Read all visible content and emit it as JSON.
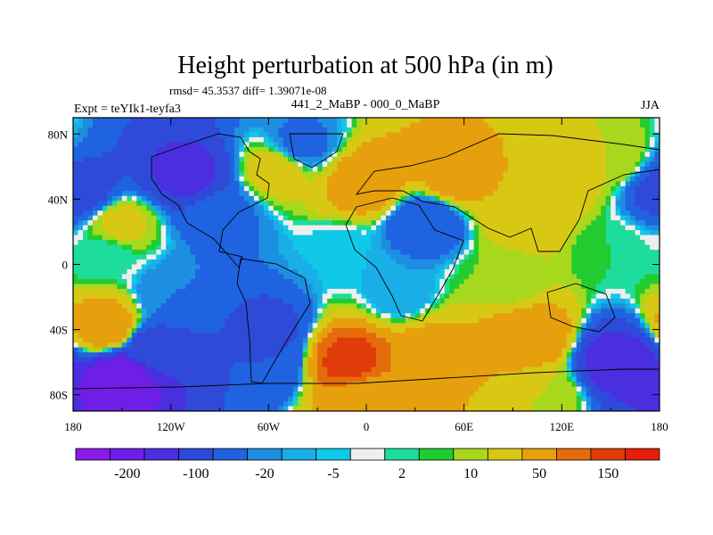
{
  "chart_data": {
    "type": "heatmap",
    "title": "Height perturbation at 500 hPa (in m)",
    "stats_text": "rmsd= 45.3537 diff= 1.39071e-08",
    "subtitle": "441_2_MaBP - 000_0_MaBP",
    "left_label": "Expt = teYIk1-teyfa3",
    "right_label": "JJA",
    "xlabel": "",
    "ylabel": "",
    "xlim": [
      -180,
      180
    ],
    "ylim": [
      -90,
      90
    ],
    "x_ticks": [
      {
        "value": -180,
        "label": "180"
      },
      {
        "value": -120,
        "label": "120W"
      },
      {
        "value": -60,
        "label": "60W"
      },
      {
        "value": 0,
        "label": "0"
      },
      {
        "value": 60,
        "label": "60E"
      },
      {
        "value": 120,
        "label": "120E"
      },
      {
        "value": 180,
        "label": "180"
      }
    ],
    "y_ticks": [
      {
        "value": 80,
        "label": "80N"
      },
      {
        "value": 40,
        "label": "40N"
      },
      {
        "value": 0,
        "label": "0"
      },
      {
        "value": -40,
        "label": "40S"
      },
      {
        "value": -80,
        "label": "80S"
      }
    ],
    "colorbar": {
      "levels": [
        -200,
        -150,
        -100,
        -50,
        -20,
        -10,
        -5,
        -2,
        2,
        5,
        10,
        20,
        50,
        100,
        150,
        200
      ],
      "shown_labels": [
        {
          "index": 1,
          "label": "-200"
        },
        {
          "index": 3,
          "label": "-100"
        },
        {
          "index": 5,
          "label": "-20"
        },
        {
          "index": 7,
          "label": "-5"
        },
        {
          "index": 9,
          "label": "2"
        },
        {
          "index": 11,
          "label": "10"
        },
        {
          "index": 13,
          "label": "50"
        },
        {
          "index": 15,
          "label": "150"
        }
      ],
      "colors": [
        "#8a1ae6",
        "#6e1ee6",
        "#4b2ee0",
        "#2f4ad8",
        "#2063e0",
        "#1e8ee0",
        "#19aee6",
        "#10c9e8",
        "#eeeeee",
        "#1edc9c",
        "#22cc30",
        "#a8d81e",
        "#d8c814",
        "#e6a00e",
        "#e66b0a",
        "#e03c0a",
        "#e61e0a"
      ]
    },
    "field_centers": [
      {
        "lon": -110,
        "lat": 55,
        "value": -115
      },
      {
        "lon": -175,
        "lat": 45,
        "value": -70
      },
      {
        "lon": -40,
        "lat": 73,
        "value": -25
      },
      {
        "lon": -90,
        "lat": 30,
        "value": -25
      },
      {
        "lon": 0,
        "lat": 50,
        "value": 85
      },
      {
        "lon": -55,
        "lat": 58,
        "value": 30
      },
      {
        "lon": 55,
        "lat": 55,
        "value": 70
      },
      {
        "lon": 120,
        "lat": 55,
        "value": 40
      },
      {
        "lon": 150,
        "lat": 65,
        "value": 20
      },
      {
        "lon": 35,
        "lat": 26,
        "value": -45
      },
      {
        "lon": 100,
        "lat": 30,
        "value": 40
      },
      {
        "lon": -150,
        "lat": 25,
        "value": 25
      },
      {
        "lon": 150,
        "lat": 10,
        "value": 5
      },
      {
        "lon": -120,
        "lat": -20,
        "value": -20
      },
      {
        "lon": -160,
        "lat": -38,
        "value": 80
      },
      {
        "lon": -130,
        "lat": -52,
        "value": -75
      },
      {
        "lon": -150,
        "lat": -70,
        "value": -190
      },
      {
        "lon": -60,
        "lat": -40,
        "value": -60
      },
      {
        "lon": -60,
        "lat": -62,
        "value": -50
      },
      {
        "lon": -10,
        "lat": -60,
        "value": 170
      },
      {
        "lon": 40,
        "lat": -55,
        "value": 70
      },
      {
        "lon": 100,
        "lat": -45,
        "value": 90
      },
      {
        "lon": 155,
        "lat": -60,
        "value": -130
      },
      {
        "lon": 85,
        "lat": -10,
        "value": 10
      },
      {
        "lon": 20,
        "lat": -18,
        "value": -10
      },
      {
        "lon": -15,
        "lat": 8,
        "value": -5
      },
      {
        "lon": -160,
        "lat": 5,
        "value": 2
      },
      {
        "lon": 0,
        "lat": -82,
        "value": 50
      },
      {
        "lon": 110,
        "lat": -80,
        "value": 20
      }
    ]
  }
}
